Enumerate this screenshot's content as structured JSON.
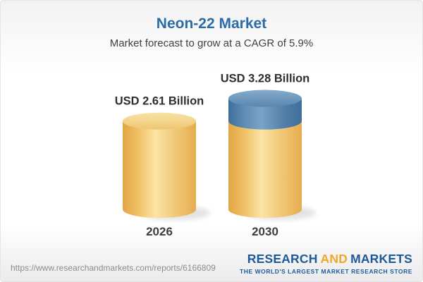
{
  "header": {
    "title": "Neon-22 Market",
    "subtitle": "Market forecast to grow at a CAGR of 5.9%",
    "title_color": "#2a6ca6"
  },
  "chart_data": {
    "type": "bar",
    "variant": "3d-cylinder",
    "title": "Neon-22 Market",
    "subtitle": "Market forecast to grow at a CAGR of 5.9%",
    "unit": "USD Billion",
    "cagr_percent": 5.9,
    "categories": [
      "2026",
      "2030"
    ],
    "values": [
      2.61,
      3.28
    ],
    "series": [
      {
        "category": "2026",
        "value": 2.61,
        "value_label": "USD 2.61 Billion",
        "highlight_increment": false
      },
      {
        "category": "2030",
        "value": 3.28,
        "value_label": "USD 3.28 Billion",
        "highlight_increment": true
      }
    ],
    "colors": {
      "base_segment": "#f0c469",
      "increment_segment": "#5d8cb4"
    },
    "legend": "none",
    "grid": "off"
  },
  "footer": {
    "url": "https://www.researchandmarkets.com/reports/6166809",
    "logo": {
      "part1": "RESEARCH",
      "part2": "AND",
      "part3": "MARKETS",
      "tagline": "THE WORLD'S LARGEST MARKET RESEARCH STORE",
      "blue": "#1d5a99",
      "gold": "#f0a72a"
    }
  }
}
